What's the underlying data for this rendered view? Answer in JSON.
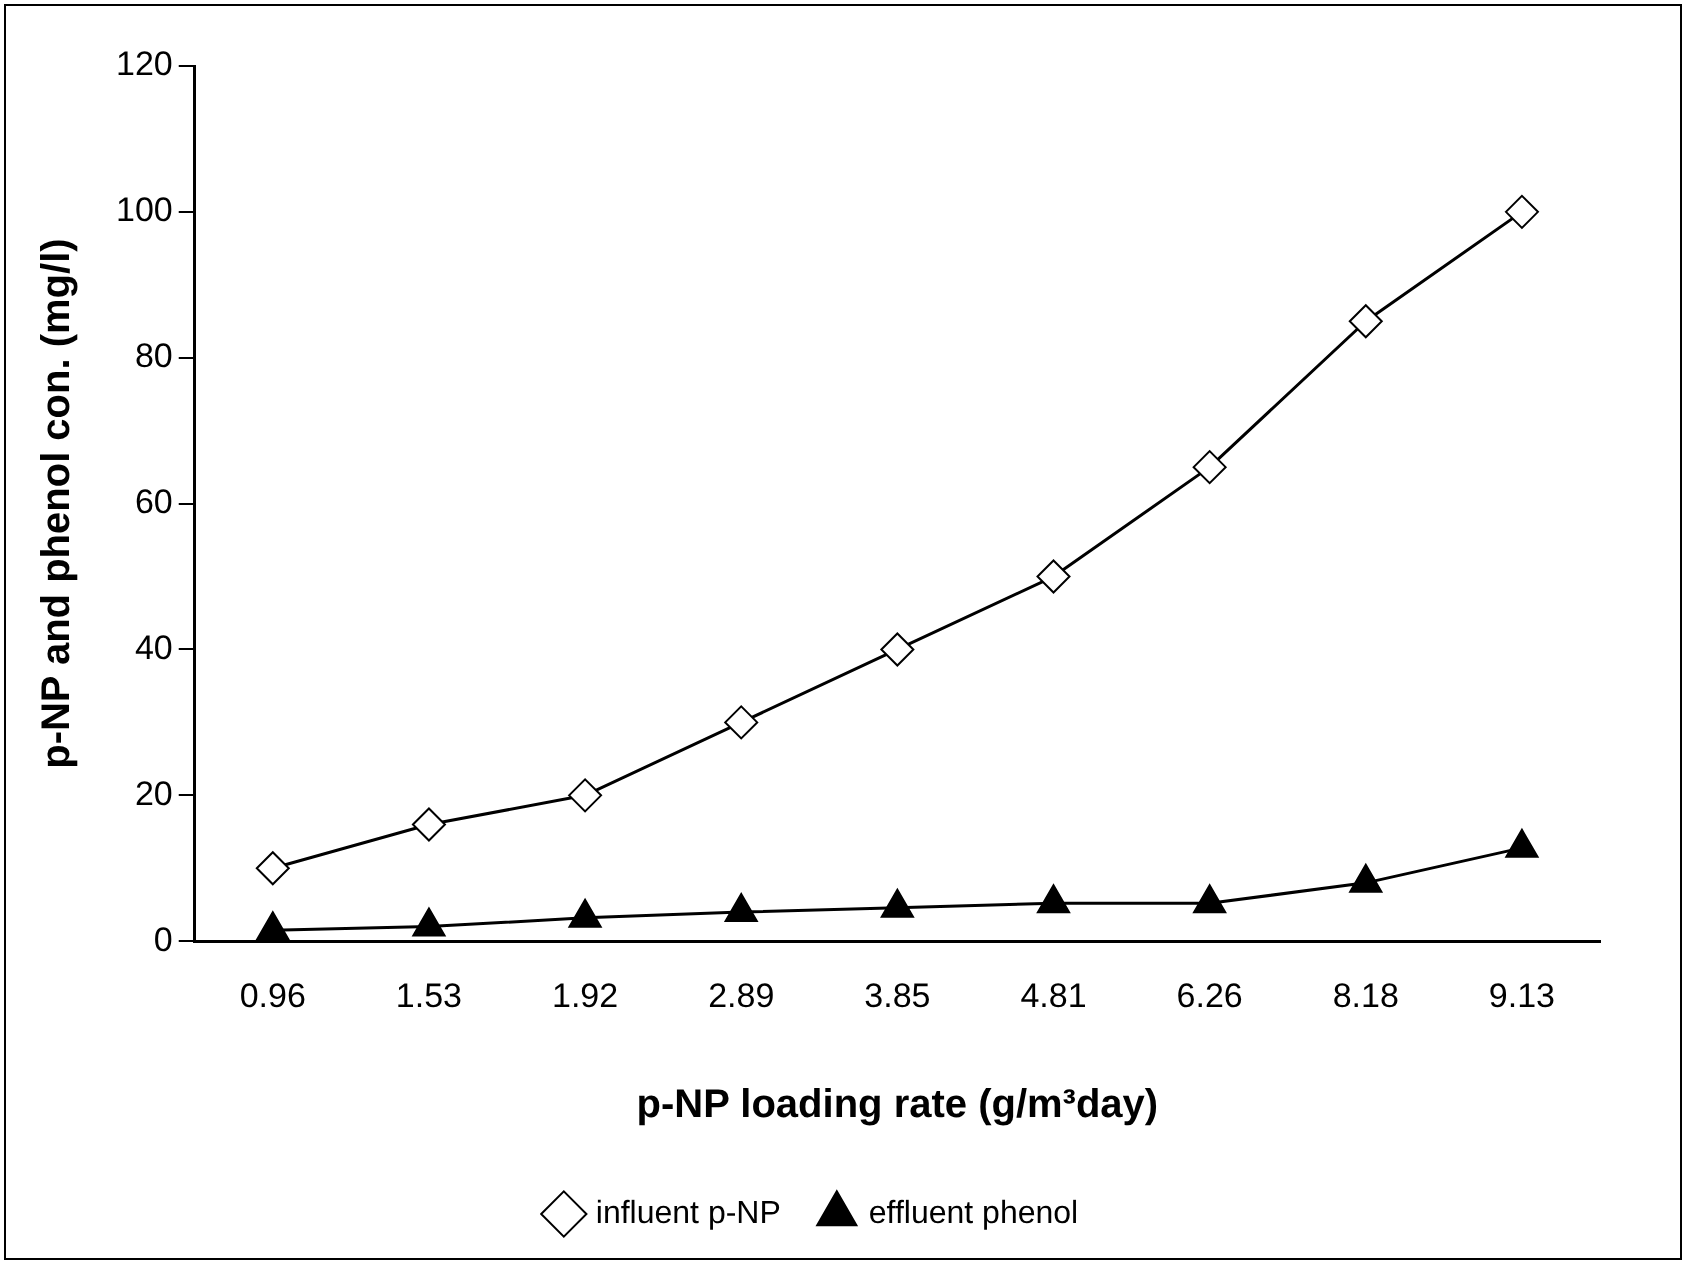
{
  "chart_data": {
    "type": "line",
    "xlabel": "p-NP loading rate (g/m³day)",
    "ylabel": "p-NP and phenol con. (mg/l)",
    "categories": [
      "0.96",
      "1.53",
      "1.92",
      "2.89",
      "3.85",
      "4.81",
      "6.26",
      "8.18",
      "9.13"
    ],
    "series": [
      {
        "name": "influent p-NP",
        "color": "#000000",
        "marker": "diamond",
        "values": [
          10,
          16,
          20,
          30,
          40,
          50,
          65,
          85,
          100
        ]
      },
      {
        "name": "effluent phenol",
        "color": "#000000",
        "marker": "triangle",
        "values": [
          1.5,
          2,
          3.2,
          4,
          4.6,
          5.2,
          5.2,
          8,
          12.8
        ]
      }
    ],
    "ylim": [
      0,
      120
    ],
    "yticks": [
      0,
      20,
      40,
      60,
      80,
      100,
      120
    ],
    "grid": false,
    "legend": "bottom",
    "line_style": "solid"
  }
}
